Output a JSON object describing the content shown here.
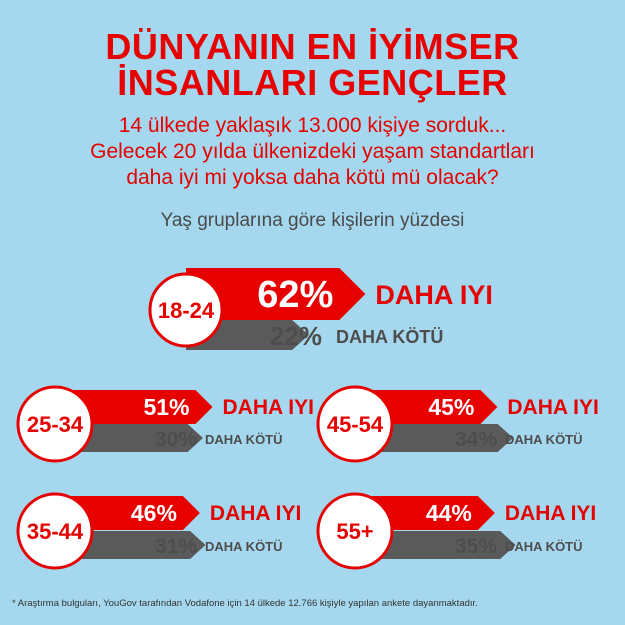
{
  "header": {
    "title_line1": "DÜNYANIN EN İYİMSER",
    "title_line2": "İNSANLARI GENÇLER",
    "subtitle_line1": "14 ülkede yaklaşık 13.000 kişiye sorduk...",
    "subtitle_line2": "Gelecek 20 yılda ülkenizdeki yaşam standartları",
    "subtitle_line3": "daha iyi mi yoksa daha kötü mü olacak?",
    "caption": "Yaş gruplarına göre kişilerin yüzdesi"
  },
  "chart_data": {
    "type": "bar",
    "categories": [
      "18-24",
      "25-34",
      "45-54",
      "35-44",
      "55+"
    ],
    "series": [
      {
        "name": "DAHA IYI",
        "values": [
          62,
          51,
          45,
          46,
          44
        ],
        "labels": [
          "62%",
          "51%",
          "45%",
          "46%",
          "44%"
        ]
      },
      {
        "name": "DAHA KÖTÜ",
        "values": [
          22,
          30,
          34,
          31,
          35
        ],
        "labels": [
          "22%",
          "30%",
          "34%",
          "31%",
          "35%"
        ]
      }
    ],
    "colors": {
      "better": "#e60000",
      "worse": "#5a5a5a",
      "circle_fill": "#ffffff",
      "circle_text": "#e60000"
    }
  },
  "footnote": "* Araştırma bulguları, YouGov tarafından Vodafone için 14 ülkede 12.766 kişiyle yapılan ankete dayanmaktadır."
}
